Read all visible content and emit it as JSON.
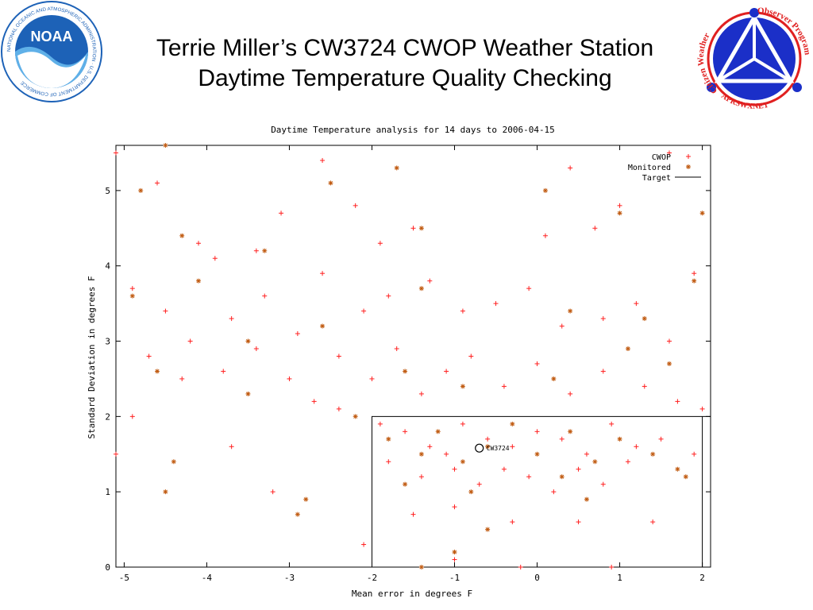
{
  "slide": {
    "title_line1": "Terrie Miller’s CW3724 CWOP Weather Station",
    "title_line2": "Daytime Temperature Quality Checking"
  },
  "logos": {
    "noaa": {
      "name": "noaa-logo",
      "text": "NOAA",
      "ring_text": "NATIONAL OCEANIC AND ATMOSPHERIC ADMINISTRATION · U.S. DEPARTMENT OF COMMERCE"
    },
    "cwop": {
      "name": "cwop-logo",
      "left_text": "Citizen Weather",
      "right_text": "Observer Program",
      "bottom_text": "APRSWXNET"
    }
  },
  "colors": {
    "cwop_points": "#ff2020",
    "monitored_points": "#c05a10",
    "target_line": "#000000",
    "noaa_blue": "#1d62b7",
    "cwop_blue": "#1b2fc8",
    "cwop_red": "#e02020"
  },
  "chart_data": {
    "type": "scatter",
    "title": "Daytime Temperature analysis for 14 days to 2006-04-15",
    "xlabel": "Mean error in degrees F",
    "ylabel": "Standard Deviation in degrees F",
    "xlim": [
      -5.1,
      2.1
    ],
    "ylim": [
      0,
      5.6
    ],
    "x_ticks": [
      "-5",
      "-4",
      "-3",
      "-2",
      "-1",
      "0",
      "1",
      "2"
    ],
    "y_ticks": [
      "0",
      "1",
      "2",
      "3",
      "4",
      "5"
    ],
    "legend_position": "top-right",
    "legend": [
      "CWOP",
      "Monitored",
      "Target"
    ],
    "target_box": {
      "x": [
        -2,
        2
      ],
      "y": [
        0,
        2
      ]
    },
    "station": {
      "label": "CW3724",
      "x": -0.7,
      "y": 1.58
    },
    "series": [
      {
        "name": "CWOP",
        "marker": "+",
        "points": [
          [
            -5.1,
            5.5
          ],
          [
            -4.6,
            5.1
          ],
          [
            -4.1,
            4.3
          ],
          [
            -3.9,
            4.1
          ],
          [
            -3.4,
            4.2
          ],
          [
            -3.1,
            4.7
          ],
          [
            -2.6,
            5.4
          ],
          [
            -2.2,
            4.8
          ],
          [
            -1.9,
            4.3
          ],
          [
            -1.5,
            4.5
          ],
          [
            0.1,
            4.4
          ],
          [
            0.4,
            5.3
          ],
          [
            0.7,
            4.5
          ],
          [
            1.0,
            4.8
          ],
          [
            1.6,
            5.5
          ],
          [
            -4.9,
            3.7
          ],
          [
            -4.5,
            3.4
          ],
          [
            -4.2,
            3.0
          ],
          [
            -3.7,
            3.3
          ],
          [
            -3.3,
            3.6
          ],
          [
            -2.9,
            3.1
          ],
          [
            -2.6,
            3.9
          ],
          [
            -2.1,
            3.4
          ],
          [
            -1.8,
            3.6
          ],
          [
            -1.3,
            3.8
          ],
          [
            -0.9,
            3.4
          ],
          [
            -0.5,
            3.5
          ],
          [
            -0.1,
            3.7
          ],
          [
            0.3,
            3.2
          ],
          [
            0.8,
            3.3
          ],
          [
            1.2,
            3.5
          ],
          [
            1.6,
            3.0
          ],
          [
            1.9,
            3.9
          ],
          [
            -4.7,
            2.8
          ],
          [
            -4.3,
            2.5
          ],
          [
            -3.8,
            2.6
          ],
          [
            -3.4,
            2.9
          ],
          [
            -3.0,
            2.5
          ],
          [
            -2.7,
            2.2
          ],
          [
            -2.4,
            2.8
          ],
          [
            -2.0,
            2.5
          ],
          [
            -1.7,
            2.9
          ],
          [
            -1.4,
            2.3
          ],
          [
            -1.1,
            2.6
          ],
          [
            -0.8,
            2.8
          ],
          [
            -0.4,
            2.4
          ],
          [
            0.0,
            2.7
          ],
          [
            0.4,
            2.3
          ],
          [
            0.8,
            2.6
          ],
          [
            1.3,
            2.4
          ],
          [
            1.7,
            2.2
          ],
          [
            -2.4,
            2.1
          ],
          [
            -1.9,
            1.9
          ],
          [
            -1.6,
            1.8
          ],
          [
            -1.3,
            1.6
          ],
          [
            -1.1,
            1.5
          ],
          [
            -0.9,
            1.9
          ],
          [
            -0.6,
            1.7
          ],
          [
            -0.3,
            1.6
          ],
          [
            0.0,
            1.8
          ],
          [
            0.3,
            1.7
          ],
          [
            0.6,
            1.5
          ],
          [
            0.9,
            1.9
          ],
          [
            1.2,
            1.6
          ],
          [
            1.5,
            1.7
          ],
          [
            1.9,
            1.5
          ],
          [
            -1.8,
            1.4
          ],
          [
            -1.4,
            1.2
          ],
          [
            -1.0,
            1.3
          ],
          [
            -0.7,
            1.1
          ],
          [
            -0.4,
            1.3
          ],
          [
            -0.1,
            1.2
          ],
          [
            0.2,
            1.0
          ],
          [
            0.5,
            1.3
          ],
          [
            0.8,
            1.1
          ],
          [
            1.1,
            1.4
          ],
          [
            -1.5,
            0.7
          ],
          [
            -1.0,
            0.8
          ],
          [
            -0.3,
            0.6
          ],
          [
            0.5,
            0.6
          ],
          [
            -2.1,
            0.3
          ],
          [
            -1.0,
            0.1
          ],
          [
            0.9,
            0.0
          ],
          [
            -5.1,
            1.5
          ],
          [
            -3.2,
            1.0
          ],
          [
            -3.7,
            1.6
          ],
          [
            -4.9,
            2.0
          ],
          [
            1.4,
            0.6
          ],
          [
            2.0,
            2.1
          ],
          [
            -0.2,
            0.0
          ]
        ]
      },
      {
        "name": "Monitored",
        "marker": "*",
        "points": [
          [
            -4.8,
            5.0
          ],
          [
            -4.5,
            5.6
          ],
          [
            -2.5,
            5.1
          ],
          [
            -1.7,
            5.3
          ],
          [
            0.1,
            5.0
          ],
          [
            1.0,
            4.7
          ],
          [
            2.0,
            4.7
          ],
          [
            -4.3,
            4.4
          ],
          [
            -3.3,
            4.2
          ],
          [
            -1.4,
            4.5
          ],
          [
            -4.9,
            3.6
          ],
          [
            -4.1,
            3.8
          ],
          [
            -2.6,
            3.2
          ],
          [
            -1.4,
            3.7
          ],
          [
            0.4,
            3.4
          ],
          [
            1.3,
            3.3
          ],
          [
            1.9,
            3.8
          ],
          [
            -4.6,
            2.6
          ],
          [
            -3.5,
            2.3
          ],
          [
            -2.2,
            2.0
          ],
          [
            -1.6,
            2.6
          ],
          [
            -0.9,
            2.4
          ],
          [
            0.2,
            2.5
          ],
          [
            1.1,
            2.9
          ],
          [
            1.6,
            2.7
          ],
          [
            -1.8,
            1.7
          ],
          [
            -1.4,
            1.5
          ],
          [
            -1.2,
            1.8
          ],
          [
            -0.9,
            1.4
          ],
          [
            -0.6,
            1.6
          ],
          [
            -0.3,
            1.9
          ],
          [
            0.0,
            1.5
          ],
          [
            0.4,
            1.8
          ],
          [
            0.7,
            1.4
          ],
          [
            1.0,
            1.7
          ],
          [
            1.4,
            1.5
          ],
          [
            1.8,
            1.2
          ],
          [
            -1.6,
            1.1
          ],
          [
            -0.8,
            1.0
          ],
          [
            0.3,
            1.2
          ],
          [
            -4.4,
            1.4
          ],
          [
            -4.5,
            1.0
          ],
          [
            -2.9,
            0.7
          ],
          [
            -1.0,
            0.2
          ],
          [
            -1.4,
            0.0
          ],
          [
            0.6,
            0.9
          ],
          [
            1.7,
            1.3
          ],
          [
            -2.8,
            0.9
          ],
          [
            -0.6,
            0.5
          ],
          [
            -3.5,
            3.0
          ]
        ]
      }
    ]
  }
}
